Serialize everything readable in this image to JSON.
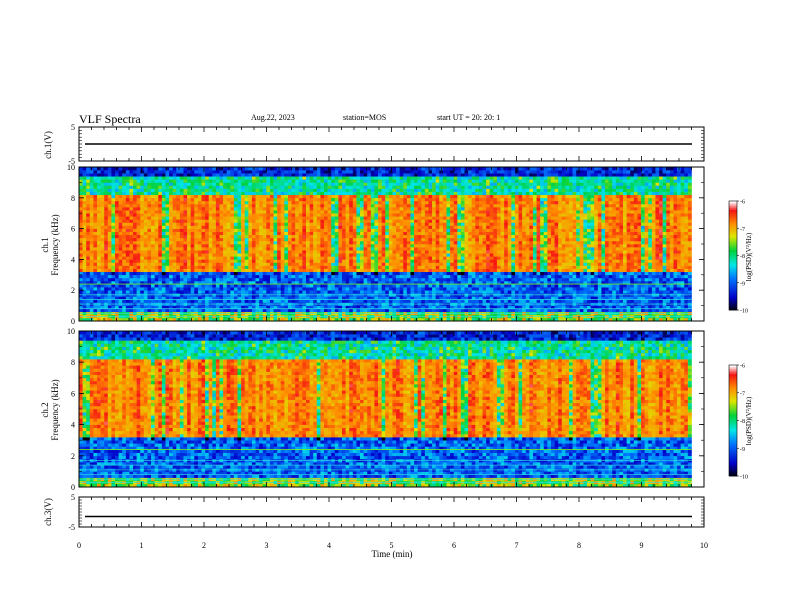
{
  "header": {
    "title": "VLF Spectra",
    "date": "Aug.22, 2023",
    "station": "station=MOS",
    "start_ut": "start  UT =   20: 20: 1"
  },
  "chart_data": [
    {
      "type": "line",
      "name": "ch1-voltage",
      "ylabel": "ch.1(V)",
      "ylim": [
        -5,
        5
      ],
      "yticks": [
        "5",
        "-5"
      ],
      "xlim": [
        0,
        10
      ],
      "series": [
        {
          "name": "ch.1",
          "level": 0
        }
      ]
    },
    {
      "type": "heatmap",
      "name": "ch1-spectrogram",
      "ylabel": "ch.1\nFrequency (kHz)",
      "ylim": [
        0,
        10
      ],
      "yticks": [
        "0",
        "2",
        "4",
        "6",
        "8",
        "10"
      ],
      "xlim": [
        0,
        10
      ],
      "data_end_min": 9.8,
      "colorbar": {
        "label": "log(PSD)(V²/Hz)",
        "range": [
          -10,
          -6
        ],
        "ticks": [
          "-6",
          "-7",
          "-8",
          "-9",
          "-10"
        ]
      }
    },
    {
      "type": "heatmap",
      "name": "ch2-spectrogram",
      "ylabel": "ch.2\nFrequency (kHz)",
      "ylim": [
        0,
        10
      ],
      "yticks": [
        "0",
        "2",
        "4",
        "6",
        "8",
        "10"
      ],
      "xlim": [
        0,
        10
      ],
      "data_end_min": 9.8,
      "colorbar": {
        "label": "log(PSD)(V²/Hz)",
        "range": [
          -10,
          -6
        ],
        "ticks": [
          "-6",
          "-7",
          "-8",
          "-9",
          "-10"
        ]
      }
    },
    {
      "type": "line",
      "name": "ch3-voltage",
      "ylabel": "ch.3(V)",
      "ylim": [
        -5,
        5
      ],
      "yticks": [
        "5",
        "-5"
      ],
      "xlim": [
        0,
        10
      ],
      "series": [
        {
          "name": "ch.3",
          "level": -1.5
        }
      ]
    }
  ],
  "xaxis": {
    "label": "Time  (min)",
    "ticks": [
      "0",
      "1",
      "2",
      "3",
      "4",
      "5",
      "6",
      "7",
      "8",
      "9",
      "10"
    ]
  }
}
